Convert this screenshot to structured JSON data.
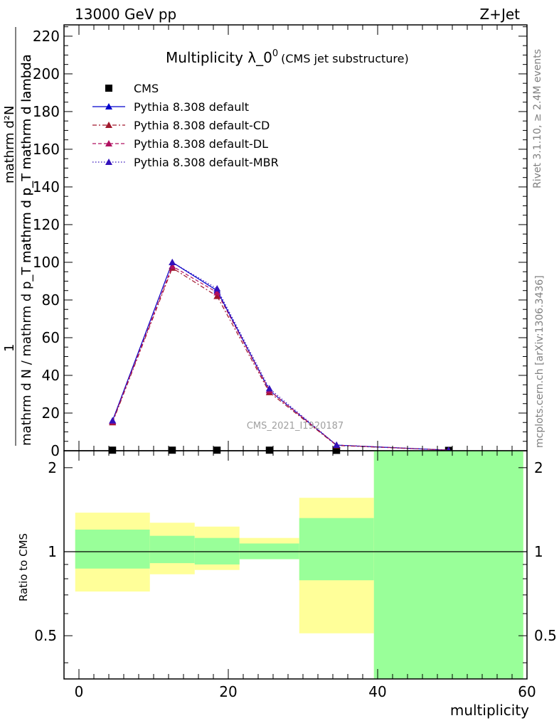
{
  "header": {
    "left": "13000 GeV pp",
    "right": "Z+Jet"
  },
  "side_labels": {
    "rivet": "Rivet 3.1.10, ≥ 2.4M events",
    "mcplots": "mcplots.cern.ch [arXiv:1306.3436]"
  },
  "chart_data": [
    {
      "type": "line",
      "title": "Multiplicity λ_0",
      "title_sup": "0",
      "subtitle": "(CMS jet substructure)",
      "watermark": "CMS_2021_I1920187",
      "ylabel_numerator": "mathrm d²N",
      "ylabel_numerator_pre": "1",
      "ylabel_denominator": "mathrm d N / mathrm d p_T mathrm d p_T mathrm d lambda",
      "ylabel_top": "mathrm d²N",
      "ylabel_mid": "mathrm d p_T mathrm d lambda",
      "ylabel_one": "1",
      "ylabel_bottom": "mathrm d N / mathrm d p_T mathrm d p_T mathrm d lambda",
      "xlim": [
        -2,
        60
      ],
      "ylim": [
        0,
        226
      ],
      "yticks": [
        0,
        20,
        40,
        60,
        80,
        100,
        120,
        140,
        160,
        180,
        200,
        220
      ],
      "legend_placement": "top-left",
      "series": [
        {
          "name": "CMS",
          "style": "marker",
          "color": "#000000",
          "x": [
            4.5,
            12.5,
            18.5,
            25.5,
            34.5,
            49.5
          ],
          "y": [
            0.3,
            0.3,
            0.3,
            0.3,
            0.2,
            0.2
          ]
        },
        {
          "name": "Pythia 8.308 default",
          "style": "solid",
          "color": "#0000cc",
          "x": [
            4.5,
            12.5,
            18.5,
            25.5,
            34.5,
            49.5
          ],
          "y": [
            16,
            100,
            85,
            32,
            3,
            0.3
          ]
        },
        {
          "name": "Pythia 8.308 default-CD",
          "style": "dashdot",
          "color": "#a0182c",
          "x": [
            4.5,
            12.5,
            18.5,
            25.5,
            34.5,
            49.5
          ],
          "y": [
            15,
            97,
            82,
            31,
            2.8,
            0.3
          ]
        },
        {
          "name": "Pythia 8.308 default-DL",
          "style": "dashed",
          "color": "#b01060",
          "x": [
            4.5,
            12.5,
            18.5,
            25.5,
            34.5,
            49.5
          ],
          "y": [
            15.5,
            98,
            84,
            32,
            3,
            0.3
          ]
        },
        {
          "name": "Pythia 8.308 default-MBR",
          "style": "dotted",
          "color": "#3311bb",
          "x": [
            4.5,
            12.5,
            18.5,
            25.5,
            34.5,
            49.5
          ],
          "y": [
            16,
            100,
            86,
            33,
            3,
            0.3
          ]
        }
      ]
    },
    {
      "type": "area",
      "ylabel": "Ratio to CMS",
      "xlabel": "multiplicity",
      "xlim": [
        -2,
        60
      ],
      "ylim": [
        0.35,
        2.3
      ],
      "yscale": "log",
      "xticks": [
        0,
        20,
        40,
        60
      ],
      "yticks": [
        0.5,
        1,
        2
      ],
      "bands": [
        {
          "xlo": -0.5,
          "xhi": 9.5,
          "yellow": [
            0.72,
            1.38
          ],
          "green": [
            0.87,
            1.2
          ]
        },
        {
          "xlo": 9.5,
          "xhi": 15.5,
          "yellow": [
            0.83,
            1.27
          ],
          "green": [
            0.91,
            1.14
          ]
        },
        {
          "xlo": 15.5,
          "xhi": 21.5,
          "yellow": [
            0.86,
            1.23
          ],
          "green": [
            0.9,
            1.12
          ]
        },
        {
          "xlo": 21.5,
          "xhi": 29.5,
          "yellow": [
            0.94,
            1.12
          ],
          "green": [
            0.94,
            1.07
          ]
        },
        {
          "xlo": 29.5,
          "xhi": 39.5,
          "yellow": [
            0.51,
            1.56
          ],
          "green": [
            0.79,
            1.32
          ]
        },
        {
          "xlo": 39.5,
          "xhi": 59.5,
          "yellow": [
            0.35,
            2.3
          ],
          "green": [
            0.35,
            2.3
          ]
        }
      ],
      "reference": 1
    }
  ],
  "colors": {
    "yellow_band": "#ffff99",
    "green_band": "#99ff99"
  }
}
